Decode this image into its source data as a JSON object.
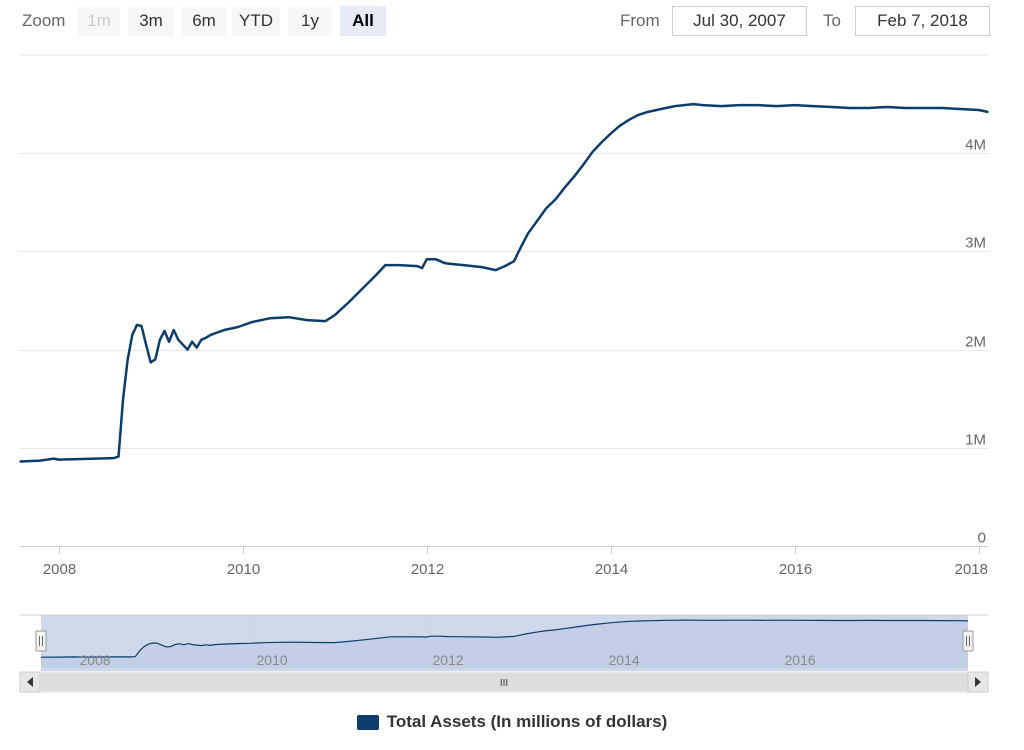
{
  "zoom": {
    "label": "Zoom",
    "buttons": [
      {
        "label": "1m",
        "state": "disabled"
      },
      {
        "label": "3m",
        "state": "normal"
      },
      {
        "label": "6m",
        "state": "normal"
      },
      {
        "label": "YTD",
        "state": "normal"
      },
      {
        "label": "1y",
        "state": "normal"
      },
      {
        "label": "All",
        "state": "active"
      }
    ]
  },
  "range": {
    "from_label": "From",
    "from_value": "Jul 30, 2007",
    "to_label": "To",
    "to_value": "Feb 7, 2018"
  },
  "navigator": {
    "x_ticks": [
      "2008",
      "2010",
      "2012",
      "2014",
      "2016"
    ],
    "scroll_grip": "III"
  },
  "colors": {
    "series": "#0c3d6b",
    "grid": "#e6e6e6",
    "navigator_fill": "#c6d1e8",
    "scrollbar": "#dddddd"
  },
  "legend": {
    "label": "Total Assets (In millions of dollars)"
  },
  "chart_data": {
    "type": "line",
    "title": "",
    "xlabel": "",
    "ylabel": "",
    "x_tick_labels": [
      "2008",
      "2010",
      "2012",
      "2014",
      "2016",
      "2018"
    ],
    "y_tick_labels": [
      "0",
      "1M",
      "2M",
      "3M",
      "4M"
    ],
    "y_ticks": [
      0,
      1000000,
      2000000,
      3000000,
      4000000
    ],
    "xlim": [
      2007.58,
      2018.1
    ],
    "ylim": [
      0,
      5000000
    ],
    "grid": true,
    "legend_position": "bottom-center",
    "series": [
      {
        "name": "Total Assets (In millions of dollars)",
        "x": [
          2007.58,
          2007.8,
          2007.95,
          2008.0,
          2008.2,
          2008.4,
          2008.6,
          2008.65,
          2008.7,
          2008.75,
          2008.8,
          2008.85,
          2008.9,
          2008.95,
          2009.0,
          2009.05,
          2009.1,
          2009.15,
          2009.2,
          2009.25,
          2009.3,
          2009.35,
          2009.4,
          2009.45,
          2009.5,
          2009.55,
          2009.6,
          2009.65,
          2009.8,
          2009.95,
          2010.1,
          2010.3,
          2010.5,
          2010.7,
          2010.9,
          2011.0,
          2011.15,
          2011.3,
          2011.45,
          2011.55,
          2011.7,
          2011.9,
          2011.95,
          2012.0,
          2012.1,
          2012.2,
          2012.3,
          2012.4,
          2012.6,
          2012.75,
          2012.85,
          2012.95,
          2013.0,
          2013.1,
          2013.2,
          2013.3,
          2013.4,
          2013.5,
          2013.6,
          2013.7,
          2013.8,
          2013.9,
          2014.0,
          2014.1,
          2014.2,
          2014.3,
          2014.4,
          2014.5,
          2014.6,
          2014.7,
          2014.8,
          2014.9,
          2015.0,
          2015.2,
          2015.4,
          2015.6,
          2015.8,
          2016.0,
          2016.2,
          2016.4,
          2016.6,
          2016.8,
          2017.0,
          2017.2,
          2017.4,
          2017.6,
          2017.8,
          2018.0,
          2018.1
        ],
        "values": [
          860000,
          870000,
          890000,
          880000,
          885000,
          890000,
          895000,
          910000,
          1500000,
          1900000,
          2150000,
          2250000,
          2240000,
          2050000,
          1870000,
          1900000,
          2100000,
          2190000,
          2080000,
          2200000,
          2100000,
          2050000,
          2000000,
          2080000,
          2020000,
          2100000,
          2120000,
          2150000,
          2200000,
          2230000,
          2280000,
          2320000,
          2330000,
          2300000,
          2290000,
          2350000,
          2480000,
          2620000,
          2760000,
          2860000,
          2860000,
          2850000,
          2830000,
          2920000,
          2920000,
          2880000,
          2870000,
          2860000,
          2840000,
          2810000,
          2850000,
          2900000,
          3000000,
          3180000,
          3310000,
          3440000,
          3530000,
          3650000,
          3760000,
          3880000,
          4010000,
          4110000,
          4200000,
          4280000,
          4340000,
          4390000,
          4420000,
          4440000,
          4460000,
          4480000,
          4490000,
          4500000,
          4490000,
          4480000,
          4490000,
          4490000,
          4480000,
          4490000,
          4480000,
          4470000,
          4460000,
          4460000,
          4470000,
          4460000,
          4460000,
          4460000,
          4450000,
          4440000,
          4420000
        ]
      }
    ]
  }
}
